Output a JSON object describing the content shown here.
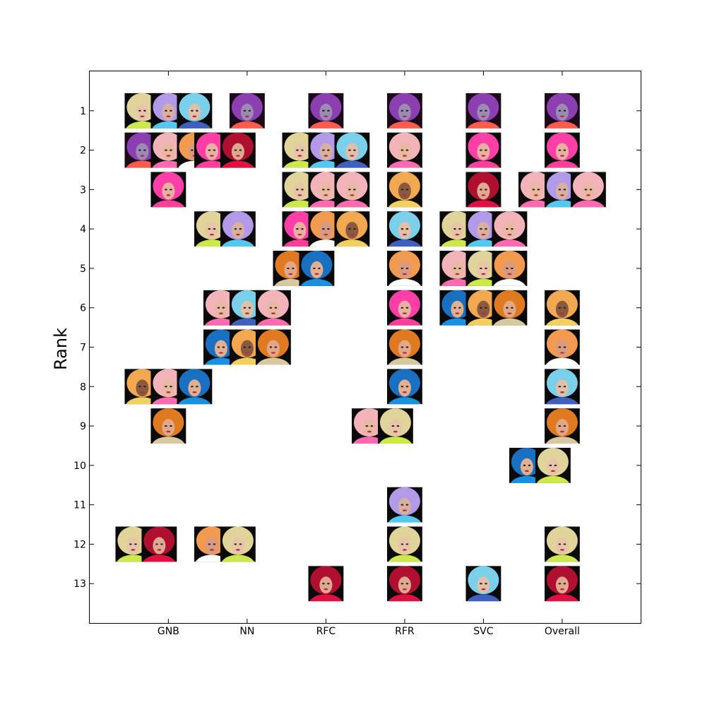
{
  "chart_data": {
    "type": "scatter",
    "title": "",
    "xlabel": "",
    "ylabel": "Rank",
    "categories": [
      "GNB",
      "NN",
      "RFC",
      "RFR",
      "SVC",
      "Overall"
    ],
    "y_ticks": [
      "1",
      "2",
      "3",
      "4",
      "5",
      "6",
      "7",
      "8",
      "9",
      "10",
      "11",
      "12",
      "13"
    ],
    "ylim": [
      14,
      0
    ],
    "y_inverted": true,
    "grid": false,
    "legend": "none",
    "marker": "contestant portrait photo",
    "contestants": {
      "A": {
        "hair": "#8c3fb0",
        "accent": "#ff5a4a",
        "skin": "#9a8ab4",
        "bg": "#1a0a1a"
      },
      "B": {
        "hair": "#ff3fa8",
        "accent": "#ff3f9a",
        "skin": "#e8b0a0",
        "bg": "#0a0a0a"
      },
      "C": {
        "hair": "#e0d49a",
        "accent": "#cde84a",
        "skin": "#e8c4a8",
        "bg": "#0a0a0a"
      },
      "D": {
        "hair": "#b39ae8",
        "accent": "#55c8f0",
        "skin": "#d8b0a0",
        "bg": "#0a0a0a"
      },
      "E": {
        "hair": "#7ad0e8",
        "accent": "#4060c0",
        "skin": "#e0c0a8",
        "bg": "#0a0a0a"
      },
      "F": {
        "hair": "#f2b4b8",
        "accent": "#ff6ab0",
        "skin": "#e8b8a0",
        "bg": "#0a0a0a"
      },
      "G": {
        "hair": "#f29a50",
        "accent": "#ffffff",
        "skin": "#d89a80",
        "bg": "#0a0a0a"
      },
      "H": {
        "hair": "#b01030",
        "accent": "#e01040",
        "skin": "#e0a890",
        "bg": "#0a0a0a"
      },
      "I": {
        "hair": "#f2a850",
        "accent": "#f2d060",
        "skin": "#8a5a40",
        "bg": "#0a0a0a"
      },
      "J": {
        "hair": "#1a70c0",
        "accent": "#1a90e0",
        "skin": "#e0b090",
        "bg": "#0a0a0a"
      },
      "K": {
        "hair": "#e07a20",
        "accent": "#d8c8a0",
        "skin": "#e0a888",
        "bg": "#0a0a0a"
      }
    },
    "series": [
      {
        "name": "GNB",
        "ranks": [
          {
            "rank": 1,
            "contestants": [
              "C",
              "D",
              "E"
            ]
          },
          {
            "rank": 2,
            "contestants": [
              "A",
              "F",
              "G"
            ]
          },
          {
            "rank": 3,
            "contestants": [
              "B"
            ]
          },
          {
            "rank": 8,
            "contestants": [
              "I",
              "F",
              "J"
            ]
          },
          {
            "rank": 9,
            "contestants": [
              "K"
            ]
          },
          {
            "rank": 12,
            "contestants": [
              "C",
              "H"
            ]
          }
        ]
      },
      {
        "name": "NN",
        "ranks": [
          {
            "rank": 1,
            "contestants": [
              "A"
            ]
          },
          {
            "rank": 2,
            "contestants": [
              "B",
              "H"
            ]
          },
          {
            "rank": 4,
            "contestants": [
              "C",
              "D"
            ]
          },
          {
            "rank": 6,
            "contestants": [
              "F",
              "E",
              "F"
            ]
          },
          {
            "rank": 7,
            "contestants": [
              "J",
              "I",
              "K"
            ]
          },
          {
            "rank": 12,
            "contestants": [
              "G",
              "C"
            ]
          }
        ]
      },
      {
        "name": "RFC",
        "ranks": [
          {
            "rank": 1,
            "contestants": [
              "A"
            ]
          },
          {
            "rank": 2,
            "contestants": [
              "C",
              "D",
              "E"
            ]
          },
          {
            "rank": 3,
            "contestants": [
              "C",
              "F",
              "F"
            ]
          },
          {
            "rank": 4,
            "contestants": [
              "B",
              "G",
              "I"
            ]
          },
          {
            "rank": 5,
            "contestants": [
              "K",
              "J"
            ]
          },
          {
            "rank": 13,
            "contestants": [
              "H"
            ]
          }
        ]
      },
      {
        "name": "RFR",
        "ranks": [
          {
            "rank": 1,
            "contestants": [
              "A"
            ]
          },
          {
            "rank": 2,
            "contestants": [
              "F"
            ]
          },
          {
            "rank": 3,
            "contestants": [
              "I"
            ]
          },
          {
            "rank": 4,
            "contestants": [
              "E"
            ]
          },
          {
            "rank": 5,
            "contestants": [
              "G"
            ]
          },
          {
            "rank": 6,
            "contestants": [
              "B"
            ]
          },
          {
            "rank": 7,
            "contestants": [
              "K"
            ]
          },
          {
            "rank": 8,
            "contestants": [
              "J"
            ]
          },
          {
            "rank": 9,
            "contestants": [
              "F",
              "C"
            ]
          },
          {
            "rank": 11,
            "contestants": [
              "D"
            ]
          },
          {
            "rank": 12,
            "contestants": [
              "C"
            ]
          },
          {
            "rank": 13,
            "contestants": [
              "H"
            ]
          }
        ]
      },
      {
        "name": "SVC",
        "ranks": [
          {
            "rank": 1,
            "contestants": [
              "A"
            ]
          },
          {
            "rank": 2,
            "contestants": [
              "B"
            ]
          },
          {
            "rank": 3,
            "contestants": [
              "H"
            ]
          },
          {
            "rank": 4,
            "contestants": [
              "C",
              "D",
              "F"
            ]
          },
          {
            "rank": 5,
            "contestants": [
              "F",
              "C",
              "G"
            ]
          },
          {
            "rank": 6,
            "contestants": [
              "J",
              "I",
              "K"
            ]
          },
          {
            "rank": 13,
            "contestants": [
              "E"
            ]
          }
        ]
      },
      {
        "name": "Overall",
        "ranks": [
          {
            "rank": 1,
            "contestants": [
              "A"
            ]
          },
          {
            "rank": 2,
            "contestants": [
              "B"
            ]
          },
          {
            "rank": 3,
            "contestants": [
              "F",
              "D",
              "F"
            ]
          },
          {
            "rank": 6,
            "contestants": [
              "I"
            ]
          },
          {
            "rank": 7,
            "contestants": [
              "G"
            ]
          },
          {
            "rank": 8,
            "contestants": [
              "E"
            ]
          },
          {
            "rank": 9,
            "contestants": [
              "K"
            ]
          },
          {
            "rank": 10,
            "contestants": [
              "J",
              "C"
            ]
          },
          {
            "rank": 12,
            "contestants": [
              "C"
            ]
          },
          {
            "rank": 13,
            "contestants": [
              "H"
            ]
          }
        ]
      }
    ]
  }
}
